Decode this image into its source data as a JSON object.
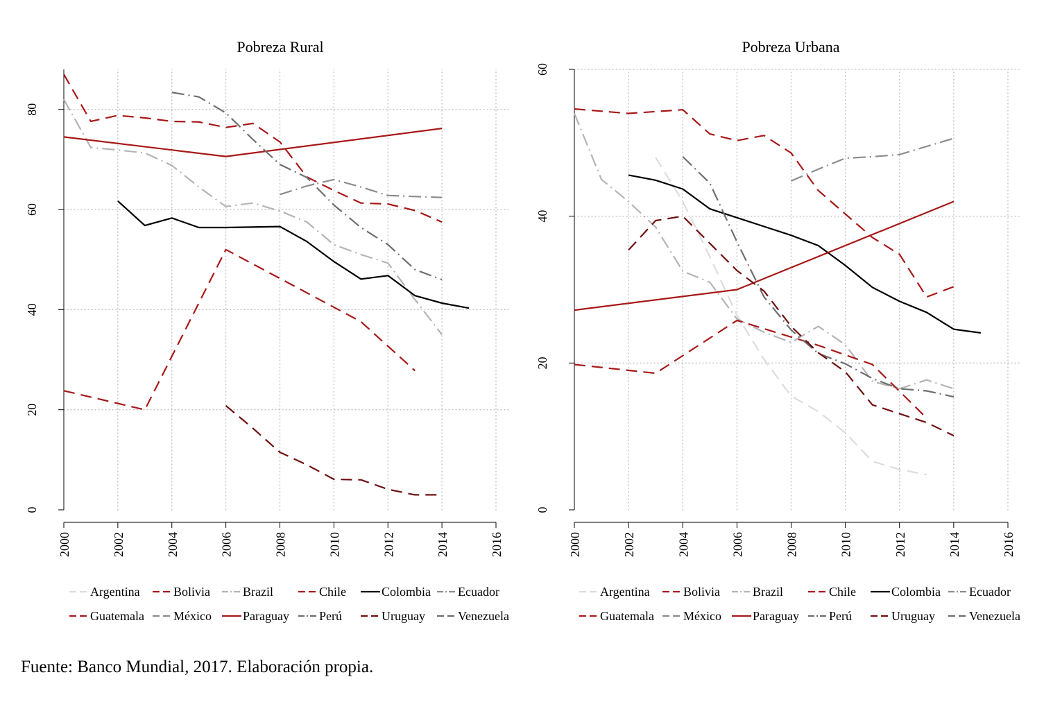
{
  "chart_data": [
    {
      "type": "line",
      "title": "Pobreza Rural",
      "xlabel": "",
      "ylabel": "",
      "xlim": [
        2000,
        2016
      ],
      "ylim": [
        0,
        88
      ],
      "x_ticks": [
        2000,
        2002,
        2004,
        2006,
        2008,
        2010,
        2012,
        2014,
        2016
      ],
      "y_ticks": [
        0,
        20,
        40,
        60,
        80
      ],
      "grid": true,
      "legend_position": "bottom",
      "series": [
        {
          "name": "Argentina",
          "color": "#dcdcdc",
          "dash": "16 9",
          "points": []
        },
        {
          "name": "Bolivia",
          "color": "#a81818",
          "dash": "16 9",
          "points": [
            [
              2000,
              87.0
            ],
            [
              2001,
              77.6
            ],
            [
              2002,
              78.8
            ],
            [
              2003,
              78.3
            ],
            [
              2004,
              77.6
            ],
            [
              2005,
              77.5
            ],
            [
              2006,
              76.4
            ],
            [
              2007,
              77.2
            ],
            [
              2008,
              73.5
            ],
            [
              2009,
              66.5
            ],
            [
              2010,
              63.8
            ],
            [
              2011,
              61.3
            ],
            [
              2012,
              61.1
            ],
            [
              2013,
              59.8
            ],
            [
              2014,
              57.5
            ]
          ]
        },
        {
          "name": "Brazil",
          "color": "#b4b4b4",
          "dash": "18 6 2 6",
          "points": [
            [
              2000,
              82.0
            ],
            [
              2001,
              72.4
            ],
            [
              2002,
              71.9
            ],
            [
              2003,
              71.3
            ],
            [
              2004,
              68.8
            ],
            [
              2005,
              64.5
            ],
            [
              2006,
              60.6
            ],
            [
              2007,
              61.3
            ],
            [
              2008,
              59.7
            ],
            [
              2009,
              57.5
            ],
            [
              2010,
              53.0
            ],
            [
              2011,
              51.0
            ],
            [
              2012,
              49.3
            ],
            [
              2013,
              42.0
            ],
            [
              2014,
              35.0
            ]
          ]
        },
        {
          "name": "Chile",
          "color": "#a81818",
          "dash": "16 9",
          "points": []
        },
        {
          "name": "Colombia",
          "color": "#000000",
          "dash": "none",
          "points": [
            [
              2002,
              61.7
            ],
            [
              2003,
              56.8
            ],
            [
              2004,
              58.3
            ],
            [
              2005,
              56.4
            ],
            [
              2006,
              56.4
            ],
            [
              2008,
              56.6
            ],
            [
              2009,
              53.6
            ],
            [
              2010,
              49.6
            ],
            [
              2011,
              46.1
            ],
            [
              2012,
              46.8
            ],
            [
              2013,
              42.8
            ],
            [
              2014,
              41.3
            ],
            [
              2015,
              40.3
            ]
          ]
        },
        {
          "name": "Ecuador",
          "color": "#8c8c8c",
          "dash": "18 6 2 6",
          "points": [
            [
              2008,
              63.0
            ],
            [
              2009,
              64.7
            ],
            [
              2010,
              66.0
            ],
            [
              2011,
              64.5
            ],
            [
              2012,
              62.8
            ],
            [
              2013,
              62.6
            ],
            [
              2014,
              62.4
            ]
          ]
        },
        {
          "name": "Guatemala",
          "color": "#a81818",
          "dash": "16 9",
          "points": [
            [
              2000,
              23.8
            ],
            [
              2003,
              20.0
            ],
            [
              2006,
              52.0
            ],
            [
              2011,
              37.6
            ],
            [
              2013,
              27.8
            ]
          ]
        },
        {
          "name": "México",
          "color": "#8c8c8c",
          "dash": "16 9",
          "points": []
        },
        {
          "name": "Paraguay",
          "color": "#a81818",
          "dash": "none",
          "points": [
            [
              2000,
              74.5
            ],
            [
              2006,
              70.6
            ],
            [
              2014,
              76.2
            ]
          ]
        },
        {
          "name": "Perú",
          "color": "#6e6e6e",
          "dash": "18 6 2 6",
          "points": [
            [
              2004,
              83.4
            ],
            [
              2005,
              82.5
            ],
            [
              2006,
              79.3
            ],
            [
              2007,
              74.0
            ],
            [
              2008,
              69.0
            ],
            [
              2009,
              66.4
            ],
            [
              2010,
              60.9
            ],
            [
              2011,
              56.4
            ],
            [
              2012,
              53.0
            ],
            [
              2013,
              48.0
            ],
            [
              2014,
              46.0
            ]
          ]
        },
        {
          "name": "Uruguay",
          "color": "#6e1010",
          "dash": "16 9",
          "points": [
            [
              2006,
              20.8
            ],
            [
              2007,
              16.3
            ],
            [
              2008,
              11.5
            ],
            [
              2009,
              9.0
            ],
            [
              2010,
              6.1
            ],
            [
              2011,
              6.0
            ],
            [
              2012,
              4.1
            ],
            [
              2013,
              3.0
            ],
            [
              2014,
              3.0
            ]
          ]
        },
        {
          "name": "Venezuela",
          "color": "#6e6e6e",
          "dash": "16 9",
          "points": []
        }
      ]
    },
    {
      "type": "line",
      "title": "Pobreza Urbana",
      "xlabel": "",
      "ylabel": "",
      "xlim": [
        2000,
        2016
      ],
      "ylim": [
        0,
        60
      ],
      "x_ticks": [
        2000,
        2002,
        2004,
        2006,
        2008,
        2010,
        2012,
        2014,
        2016
      ],
      "y_ticks": [
        0,
        20,
        40,
        60
      ],
      "grid": true,
      "legend_position": "bottom",
      "series": [
        {
          "name": "Argentina",
          "color": "#dcdcdc",
          "dash": "16 9",
          "points": [
            [
              2003,
              48.0
            ],
            [
              2004,
              42.0
            ],
            [
              2005,
              34.5
            ],
            [
              2006,
              26.5
            ],
            [
              2007,
              20.5
            ],
            [
              2008,
              15.5
            ],
            [
              2009,
              13.4
            ],
            [
              2010,
              10.5
            ],
            [
              2011,
              6.6
            ],
            [
              2012,
              5.5
            ],
            [
              2013,
              4.8
            ]
          ]
        },
        {
          "name": "Bolivia",
          "color": "#a81818",
          "dash": "16 9",
          "points": [
            [
              2000,
              54.6
            ],
            [
              2002,
              54.0
            ],
            [
              2004,
              54.5
            ],
            [
              2005,
              51.2
            ],
            [
              2006,
              50.3
            ],
            [
              2007,
              51.0
            ],
            [
              2008,
              48.6
            ],
            [
              2009,
              43.5
            ],
            [
              2010,
              40.3
            ],
            [
              2011,
              37.1
            ],
            [
              2012,
              34.8
            ],
            [
              2013,
              29.0
            ],
            [
              2014,
              30.4
            ]
          ]
        },
        {
          "name": "Brazil",
          "color": "#b4b4b4",
          "dash": "18 6 2 6",
          "points": [
            [
              2000,
              54.0
            ],
            [
              2001,
              45.0
            ],
            [
              2002,
              42.0
            ],
            [
              2003,
              38.5
            ],
            [
              2004,
              32.5
            ],
            [
              2005,
              31.0
            ],
            [
              2006,
              26.0
            ],
            [
              2007,
              24.2
            ],
            [
              2008,
              22.8
            ],
            [
              2009,
              25.0
            ],
            [
              2010,
              22.5
            ],
            [
              2011,
              17.5
            ],
            [
              2012,
              16.5
            ],
            [
              2013,
              17.7
            ],
            [
              2014,
              16.5
            ]
          ]
        },
        {
          "name": "Chile",
          "color": "#a81818",
          "dash": "16 9",
          "points": [
            [
              2000,
              19.8
            ],
            [
              2003,
              18.6
            ],
            [
              2006,
              25.8
            ],
            [
              2009,
              22.4
            ],
            [
              2011,
              19.8
            ],
            [
              2013,
              12.5
            ]
          ]
        },
        {
          "name": "Colombia",
          "color": "#000000",
          "dash": "none",
          "points": [
            [
              2002,
              45.6
            ],
            [
              2003,
              44.9
            ],
            [
              2004,
              43.7
            ],
            [
              2005,
              41.0
            ],
            [
              2006,
              39.8
            ],
            [
              2007,
              38.6
            ],
            [
              2008,
              37.4
            ],
            [
              2009,
              36.0
            ],
            [
              2010,
              33.3
            ],
            [
              2011,
              30.3
            ],
            [
              2012,
              28.4
            ],
            [
              2013,
              26.9
            ],
            [
              2014,
              24.6
            ],
            [
              2015,
              24.1
            ]
          ]
        },
        {
          "name": "Ecuador",
          "color": "#8c8c8c",
          "dash": "18 6 2 6",
          "points": [
            [
              2008,
              44.8
            ],
            [
              2009,
              46.4
            ],
            [
              2010,
              47.9
            ],
            [
              2011,
              48.1
            ],
            [
              2012,
              48.4
            ],
            [
              2013,
              49.5
            ],
            [
              2014,
              50.6
            ]
          ]
        },
        {
          "name": "Guatemala",
          "color": "#a81818",
          "dash": "16 9",
          "points": []
        },
        {
          "name": "México",
          "color": "#8c8c8c",
          "dash": "16 9",
          "points": []
        },
        {
          "name": "Paraguay",
          "color": "#a81818",
          "dash": "none",
          "points": [
            [
              2000,
              27.2
            ],
            [
              2006,
              30.0
            ],
            [
              2014,
              42.0
            ]
          ]
        },
        {
          "name": "Perú",
          "color": "#6e6e6e",
          "dash": "18 6 2 6",
          "points": [
            [
              2004,
              48.1
            ],
            [
              2005,
              44.5
            ],
            [
              2006,
              36.5
            ],
            [
              2007,
              29.0
            ],
            [
              2008,
              24.5
            ],
            [
              2009,
              21.3
            ],
            [
              2010,
              19.9
            ],
            [
              2011,
              17.9
            ],
            [
              2012,
              16.5
            ],
            [
              2013,
              16.2
            ],
            [
              2014,
              15.4
            ]
          ]
        },
        {
          "name": "Uruguay",
          "color": "#6e1010",
          "dash": "16 9",
          "points": [
            [
              2002,
              35.4
            ],
            [
              2003,
              39.4
            ],
            [
              2004,
              40.0
            ],
            [
              2005,
              36.3
            ],
            [
              2006,
              32.6
            ],
            [
              2007,
              29.8
            ],
            [
              2008,
              25.0
            ],
            [
              2009,
              21.4
            ],
            [
              2010,
              18.8
            ],
            [
              2011,
              14.3
            ],
            [
              2012,
              13.1
            ],
            [
              2013,
              11.9
            ],
            [
              2014,
              10.1
            ]
          ]
        },
        {
          "name": "Venezuela",
          "color": "#6e6e6e",
          "dash": "16 9",
          "points": []
        }
      ]
    }
  ],
  "source_note": "Fuente: Banco Mundial, 2017. Elaboración propia."
}
